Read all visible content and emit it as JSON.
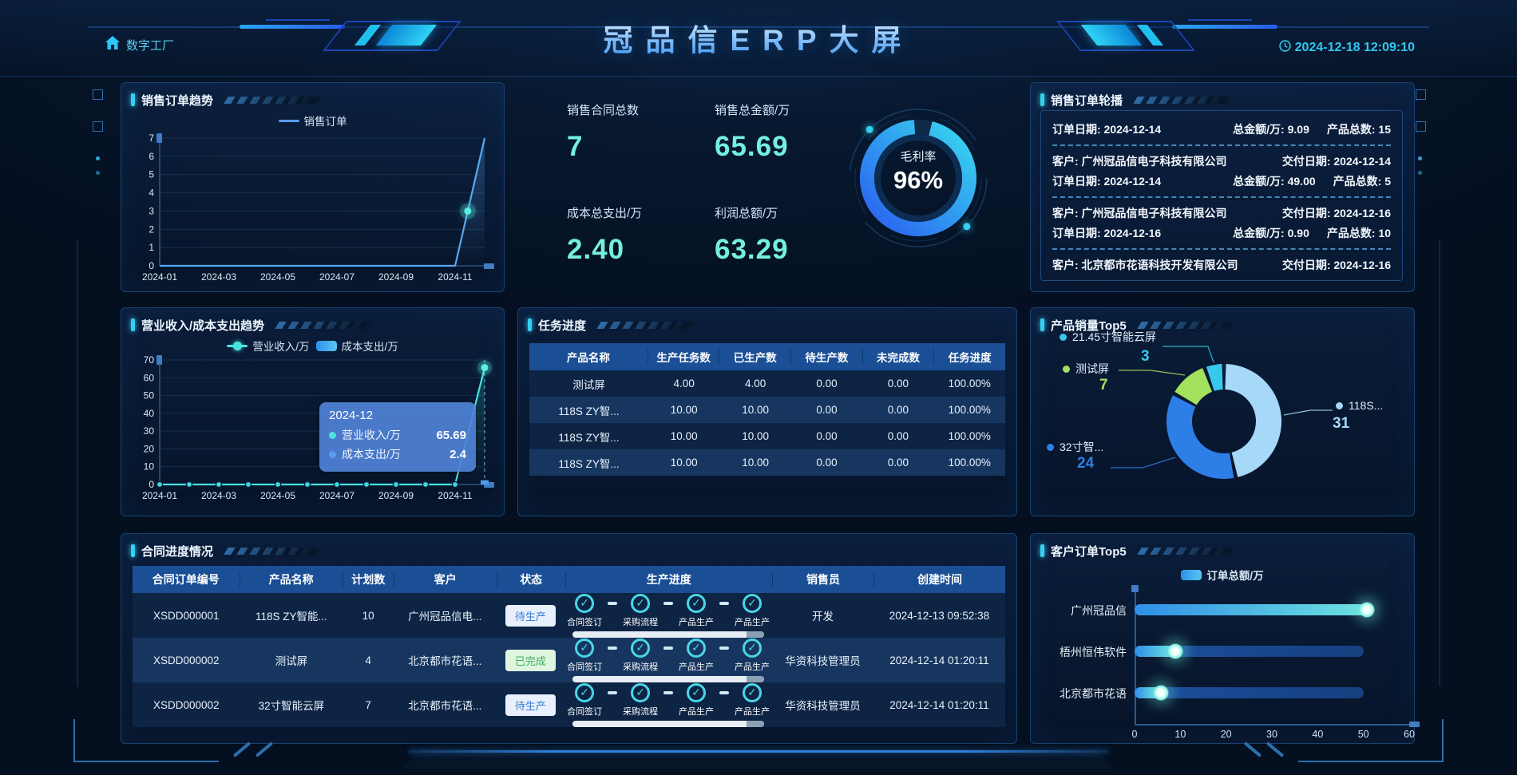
{
  "header": {
    "home_label": "数字工厂",
    "title": "冠品信ERP大屏",
    "datetime": "2024-12-18 12:09:10"
  },
  "panels": {
    "sales_order_trend": {
      "title": "销售订单趋势"
    },
    "sales_summary": {
      "stats": [
        {
          "label": "销售合同总数",
          "value": "7"
        },
        {
          "label": "销售总金额/万",
          "value": "65.69"
        },
        {
          "label": "成本总支出/万",
          "value": "2.40"
        },
        {
          "label": "利润总额/万",
          "value": "63.29"
        }
      ],
      "gauge": {
        "label": "毛利率",
        "value": "96%"
      }
    },
    "sales_order_carousel": {
      "title": "销售订单轮播",
      "field_labels": {
        "order_date": "订单日期:",
        "amount": "总金额/万:",
        "count": "产品总数:",
        "customer": "客户:",
        "delivery": "交付日期:"
      },
      "orders": [
        {
          "order_date": "2024-12-14",
          "amount": "9.09",
          "count": "15"
        },
        {
          "customer": "广州冠品信电子科技有限公司",
          "delivery": "2024-12-14",
          "order_date": "2024-12-14",
          "amount": "49.00",
          "count": "5"
        },
        {
          "customer": "广州冠品信电子科技有限公司",
          "delivery": "2024-12-16",
          "order_date": "2024-12-16",
          "amount": "0.90",
          "count": "10"
        },
        {
          "customer": "北京都市花语科技开发有限公司",
          "delivery": "2024-12-16"
        }
      ]
    },
    "revenue_cost_trend": {
      "title": "营业收入/成本支出趋势"
    },
    "task_progress": {
      "title": "任务进度",
      "columns": [
        "产品名称",
        "生产任务数",
        "已生产数",
        "待生产数",
        "未完成数",
        "任务进度"
      ],
      "rows": [
        [
          "测试屏",
          "4.00",
          "4.00",
          "0.00",
          "0.00",
          "100.00%"
        ],
        [
          "118S ZY智...",
          "10.00",
          "10.00",
          "0.00",
          "0.00",
          "100.00%"
        ],
        [
          "118S ZY智...",
          "10.00",
          "10.00",
          "0.00",
          "0.00",
          "100.00%"
        ],
        [
          "118S ZY智...",
          "10.00",
          "10.00",
          "0.00",
          "0.00",
          "100.00%"
        ]
      ]
    },
    "product_sales_top5": {
      "title": "产品销量Top5"
    },
    "contract_progress": {
      "title": "合同进度情况",
      "columns": [
        "合同订单编号",
        "产品名称",
        "计划数",
        "客户",
        "状态",
        "生产进度",
        "销售员",
        "创建时间"
      ],
      "step_labels": [
        "合同签订",
        "采购流程",
        "产品生产",
        "产品生产"
      ],
      "rows": [
        {
          "order_no": "XSDD000001",
          "product": "118S ZY智能...",
          "plan": "10",
          "customer": "广州冠品信电...",
          "status": "待生产",
          "status_type": "pending",
          "salesman": "开发",
          "created": "2024-12-13 09:52:38"
        },
        {
          "order_no": "XSDD000002",
          "product": "测试屏",
          "plan": "4",
          "customer": "北京都市花语...",
          "status": "已完成",
          "status_type": "done",
          "salesman": "华资科技管理员",
          "created": "2024-12-14 01:20:11"
        },
        {
          "order_no": "XSDD000002",
          "product": "32寸智能云屏",
          "plan": "7",
          "customer": "北京都市花语...",
          "status": "待生产",
          "status_type": "pending",
          "salesman": "华资科技管理员",
          "created": "2024-12-14 01:20:11"
        }
      ]
    },
    "customer_orders_top5": {
      "title": "客户订单Top5"
    }
  },
  "chart_data": [
    {
      "id": "sales_order_trend",
      "type": "line",
      "title": "销售订单趋势",
      "x": [
        "2024-01",
        "2024-02",
        "2024-03",
        "2024-04",
        "2024-05",
        "2024-06",
        "2024-07",
        "2024-08",
        "2024-09",
        "2024-10",
        "2024-11",
        "2024-12"
      ],
      "x_tick_labels": [
        "2024-01",
        "2024-03",
        "2024-05",
        "2024-07",
        "2024-09",
        "2024-11"
      ],
      "series": [
        {
          "name": "销售订单",
          "values": [
            0,
            0,
            0,
            0,
            0,
            0,
            0,
            0,
            0,
            0,
            0,
            7
          ],
          "color": "#5aa8f0"
        }
      ],
      "ylim": [
        0,
        7
      ],
      "yticks": [
        0,
        1,
        2,
        3,
        4,
        5,
        6,
        7
      ],
      "grid": true,
      "legend_position": "top",
      "highlight_point": {
        "between": [
          "2024-11",
          "2024-12"
        ],
        "y": 3
      }
    },
    {
      "id": "revenue_cost_trend",
      "type": "line+bar",
      "title": "营业收入/成本支出趋势",
      "x": [
        "2024-01",
        "2024-02",
        "2024-03",
        "2024-04",
        "2024-05",
        "2024-06",
        "2024-07",
        "2024-08",
        "2024-09",
        "2024-10",
        "2024-11",
        "2024-12"
      ],
      "x_tick_labels": [
        "2024-01",
        "2024-03",
        "2024-05",
        "2024-07",
        "2024-09",
        "2024-11"
      ],
      "series": [
        {
          "name": "营业收入/万",
          "type": "line",
          "values": [
            0,
            0,
            0,
            0,
            0,
            0,
            0,
            0,
            0,
            0,
            0,
            65.69
          ],
          "color": "#49e3df"
        },
        {
          "name": "成本支出/万",
          "type": "bar",
          "values": [
            0,
            0,
            0,
            0,
            0,
            0,
            0,
            0,
            0,
            0,
            0,
            2.4
          ],
          "color": "#4f9be8"
        }
      ],
      "ylim": [
        0,
        70
      ],
      "yticks": [
        0,
        10,
        20,
        30,
        40,
        50,
        60,
        70
      ],
      "grid": true,
      "legend_position": "top",
      "tooltip": {
        "title": "2024-12",
        "rows": [
          {
            "name": "营业收入/万",
            "value": "65.69",
            "color": "#49e3df"
          },
          {
            "name": "成本支出/万",
            "value": "2.4",
            "color": "#5a9bf0"
          }
        ]
      }
    },
    {
      "id": "product_sales_top5",
      "type": "pie",
      "donut": true,
      "title": "产品销量Top5",
      "slices": [
        {
          "label": "118S...",
          "value": 31,
          "color": "#a6d8f8"
        },
        {
          "label": "32寸智...",
          "value": 24,
          "color": "#2e7ee8"
        },
        {
          "label": "测试屏",
          "value": 7,
          "color": "#a2e25c"
        },
        {
          "label": "21.45寸智能云屏",
          "value": 3,
          "color": "#38c8ec"
        }
      ]
    },
    {
      "id": "customer_orders_top5",
      "type": "bar",
      "orientation": "horizontal",
      "title": "客户订单Top5",
      "legend": [
        "订单总额/万"
      ],
      "categories": [
        "广州冠品信",
        "梧州恒伟软件",
        "北京都市花语"
      ],
      "values": [
        51,
        9,
        6
      ],
      "track_value": 50,
      "xlim": [
        0,
        60
      ],
      "xticks": [
        0,
        10,
        20,
        30,
        40,
        50,
        60
      ]
    },
    {
      "id": "profit_gauge",
      "type": "gauge",
      "label": "毛利率",
      "value_text": "96%",
      "percent": 96
    }
  ],
  "colors": {
    "accent_cyan": "#35d0f0",
    "accent_blue": "#2f7fe8",
    "value_aqua": "#74f0dc",
    "panel_border": "#1c4170",
    "table_header_bg": "#1a4f96",
    "status_pending": "#3a7bd5",
    "status_done": "#3fae5f"
  }
}
